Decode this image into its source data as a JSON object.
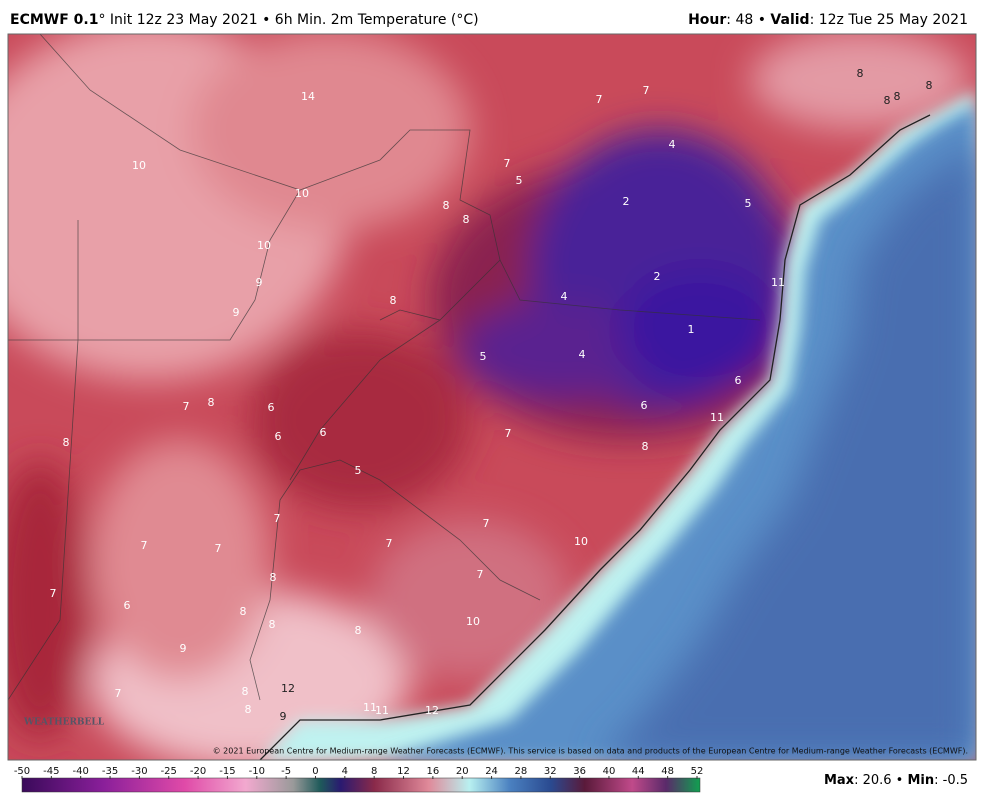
{
  "header": {
    "title_bold": "ECMWF 0.1",
    "title_rest": "° Init 12z 23 May 2021 • 6h Min. 2m Temperature (°C)",
    "hour_label": "Hour",
    "hour_value": ": 48 • ",
    "valid_label": "Valid",
    "valid_value": ": 12z Tue 25 May 2021"
  },
  "map": {
    "contour_labels": [
      14,
      10,
      10,
      10,
      9,
      9,
      8,
      8,
      8,
      7,
      5,
      7,
      7,
      4,
      2,
      5,
      2,
      4,
      1,
      4,
      5,
      6,
      6,
      11,
      11,
      7,
      8,
      7,
      8,
      6,
      6,
      6,
      8,
      5,
      7,
      7,
      7,
      10,
      7,
      7,
      8,
      7,
      7,
      6,
      8,
      8,
      8,
      10,
      9,
      12,
      8,
      8,
      9,
      11,
      11,
      12,
      7,
      8,
      8,
      8,
      8
    ],
    "copyright": "© 2021 European Centre for Medium-range Weather Forecasts (ECMWF). This service is based on data and products of the European Centre for Medium-range Weather Forecasts (ECMWF).",
    "logo": "WEATHERBELL"
  },
  "colorbar": {
    "ticks": [
      -50,
      -45,
      -40,
      -35,
      -30,
      -25,
      -20,
      -15,
      -10,
      -5,
      0,
      4,
      8,
      12,
      16,
      20,
      24,
      28,
      32,
      36,
      40,
      44,
      48,
      52
    ]
  },
  "footer": {
    "max_label": "Max",
    "max_value": ": 20.6 • ",
    "min_label": "Min",
    "min_value": ": -0.5"
  }
}
